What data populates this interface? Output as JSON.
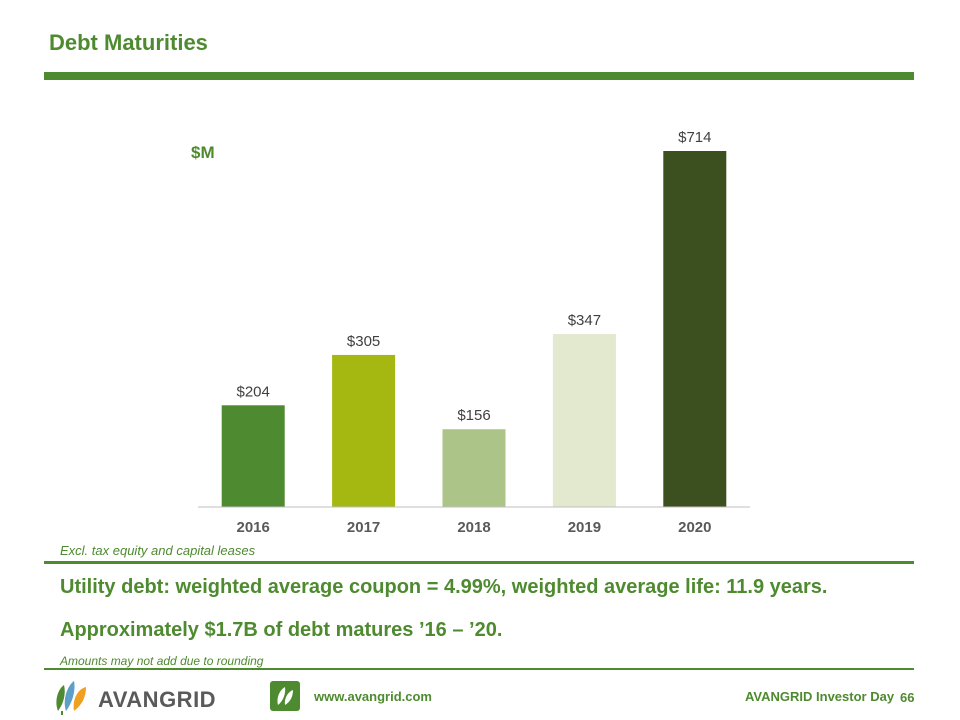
{
  "header": {
    "title": "Debt Maturities"
  },
  "chart_data": {
    "type": "bar",
    "ylabel": "$M",
    "categories": [
      "2016",
      "2017",
      "2018",
      "2019",
      "2020"
    ],
    "values": [
      204,
      305,
      156,
      347,
      714
    ],
    "value_labels": [
      "$204",
      "$305",
      "$156",
      "$347",
      "$714"
    ],
    "colors": [
      "#4e8a2f",
      "#a4b811",
      "#adc488",
      "#e2e9cf",
      "#3c4f1e"
    ],
    "ylim": [
      0,
      714
    ],
    "grid": false,
    "legend": "none"
  },
  "notes": {
    "exclusion": "Excl. tax equity and capital leases",
    "rounding": "Amounts may not add due to rounding"
  },
  "headlines": {
    "line1": "Utility debt: weighted average coupon = 4.99%, weighted average life: 11.9 years.",
    "line2": "Approximately $1.7B of debt matures ’16 – ’20."
  },
  "footer": {
    "logo_text": "AVANGRID",
    "url": "www.avangrid.com",
    "event": "AVANGRID Investor Day",
    "page_number": "66"
  },
  "theme": {
    "accent": "#4e8a2f"
  }
}
